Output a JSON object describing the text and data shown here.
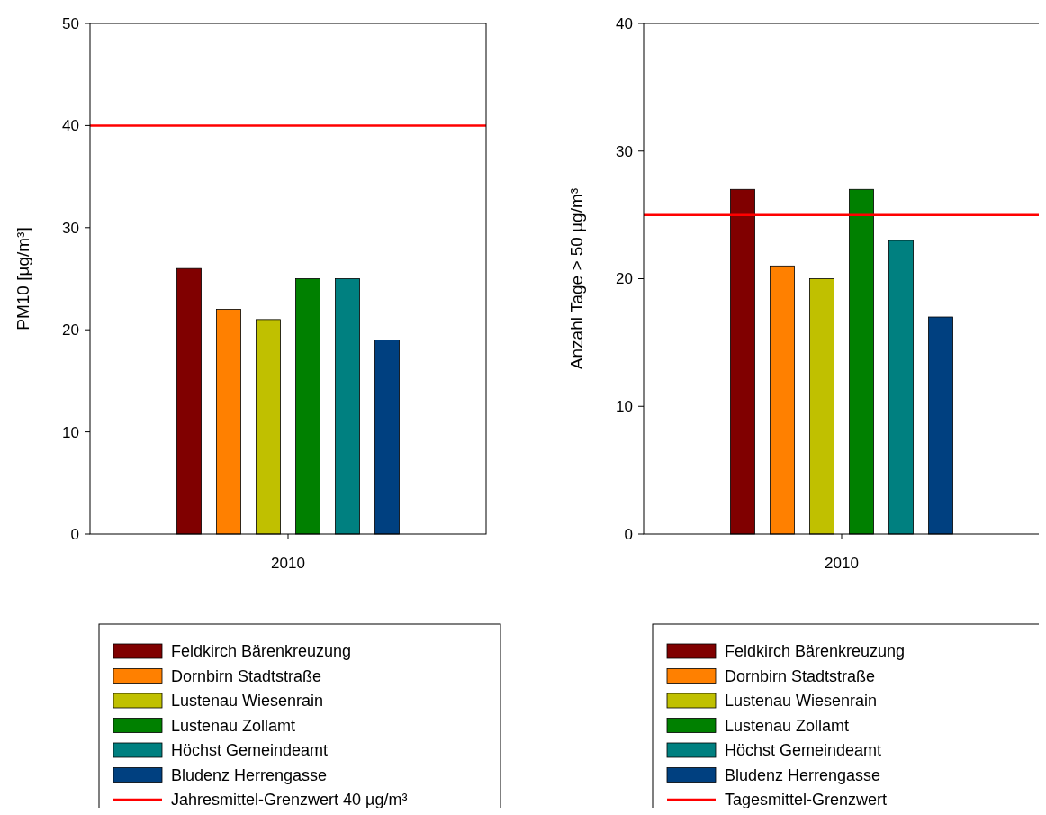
{
  "chart_data": [
    {
      "type": "bar",
      "ylabel": "PM10 [µg/m³]",
      "categories": [
        "2010"
      ],
      "ylim": [
        0,
        50
      ],
      "yticks": [
        0,
        10,
        20,
        30,
        40,
        50
      ],
      "legend": "bottom",
      "grid": false,
      "series": [
        {
          "name": "Feldkirch Bärenkreuzung",
          "color": "#800000",
          "values": [
            26
          ]
        },
        {
          "name": "Dornbirn Stadtstraße",
          "color": "#ff8000",
          "values": [
            22
          ]
        },
        {
          "name": "Lustenau Wiesenrain",
          "color": "#c0c000",
          "values": [
            21
          ]
        },
        {
          "name": "Lustenau Zollamt",
          "color": "#008000",
          "values": [
            25
          ]
        },
        {
          "name": "Höchst Gemeindeamt",
          "color": "#008080",
          "values": [
            25
          ]
        },
        {
          "name": "Bludenz Herrengasse",
          "color": "#004080",
          "values": [
            19
          ]
        }
      ],
      "ref_lines": [
        {
          "axis": "y",
          "value": 40,
          "label": "Jahresmittel-Grenzwert 40 µg/m³",
          "color": "#ff0000"
        }
      ]
    },
    {
      "type": "bar",
      "ylabel": "Anzahl Tage > 50 µg/m³",
      "categories": [
        "2010"
      ],
      "ylim": [
        0,
        40
      ],
      "yticks": [
        0,
        10,
        20,
        30,
        40
      ],
      "legend": "bottom",
      "grid": false,
      "series": [
        {
          "name": "Feldkirch Bärenkreuzung",
          "color": "#800000",
          "values": [
            27
          ]
        },
        {
          "name": "Dornbirn Stadtstraße",
          "color": "#ff8000",
          "values": [
            21
          ]
        },
        {
          "name": "Lustenau Wiesenrain",
          "color": "#c0c000",
          "values": [
            20
          ]
        },
        {
          "name": "Lustenau Zollamt",
          "color": "#008000",
          "values": [
            27
          ]
        },
        {
          "name": "Höchst Gemeindeamt",
          "color": "#008080",
          "values": [
            23
          ]
        },
        {
          "name": "Bludenz Herrengasse",
          "color": "#004080",
          "values": [
            17
          ]
        }
      ],
      "ref_lines": [
        {
          "axis": "y",
          "value": 25,
          "label": "Tagesmittel-Grenzwert",
          "color": "#ff0000"
        }
      ]
    }
  ]
}
